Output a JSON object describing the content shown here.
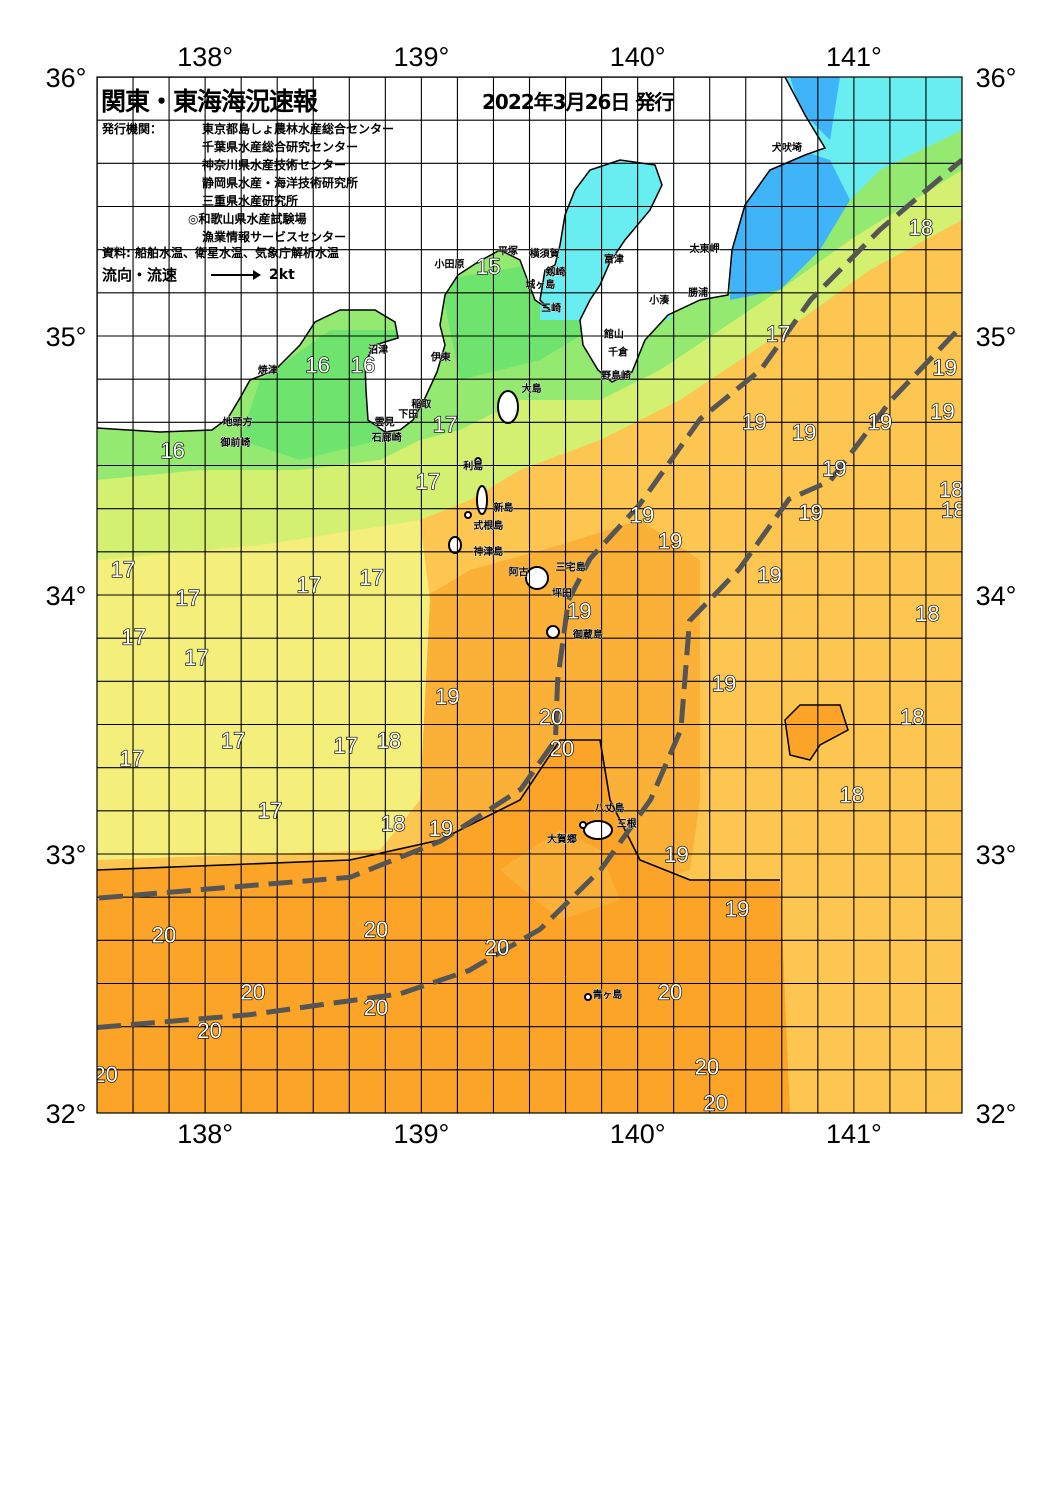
{
  "header": {
    "title": "関東・東海海況速報",
    "date": "2022年3月26日 発行",
    "issuer_label": "発行機関：",
    "issuers": [
      "東京都島しょ農林水産総合センター",
      "千葉県水産総合研究センター",
      "神奈川県水産技術センター",
      "静岡県水産・海洋技術研究所",
      "三重県水産研究所",
      "◎和歌山県水産試験場",
      "漁業情報サービスセンター"
    ],
    "source": "資料: 船舶水温、衛星水温、気象庁解析水温",
    "legend_label": "流向・流速",
    "legend_speed": "2kt"
  },
  "map": {
    "lon_range": [
      137.5,
      141.5
    ],
    "lat_range": [
      32,
      36
    ],
    "grid_step_deg": 0.1667,
    "lon_ticks": [
      "138°",
      "139°",
      "140°",
      "141°"
    ],
    "lon_tick_values": [
      138,
      139,
      140,
      141
    ],
    "lat_ticks": [
      "36°",
      "35°",
      "34°",
      "33°",
      "32°"
    ],
    "lat_tick_values": [
      36,
      35,
      34,
      33,
      32
    ],
    "colors": {
      "land": "#ffffff",
      "sst_15_16": "#6ee46e",
      "sst_16_17": "#94ea70",
      "sst_17": "#d4f070",
      "sst_17_18": "#f4ef7a",
      "sst_18_19": "#fdc650",
      "sst_19_20": "#fbb038",
      "sst_20": "#fba428",
      "cold_coastal": "#68eef0",
      "coldest_coastal": "#40b4f8",
      "kuroshio_path": "#555555"
    },
    "sst_labels": [
      {
        "t": "15",
        "lon": 139.31,
        "lat": 35.27
      },
      {
        "t": "16",
        "lon": 138.52,
        "lat": 34.89
      },
      {
        "t": "16",
        "lon": 138.73,
        "lat": 34.89
      },
      {
        "t": "17",
        "lon": 139.11,
        "lat": 34.66
      },
      {
        "t": "16",
        "lon": 137.85,
        "lat": 34.56
      },
      {
        "t": "17",
        "lon": 139.03,
        "lat": 34.44
      },
      {
        "t": "17",
        "lon": 137.62,
        "lat": 34.1
      },
      {
        "t": "17",
        "lon": 137.92,
        "lat": 33.99
      },
      {
        "t": "17",
        "lon": 138.48,
        "lat": 34.04
      },
      {
        "t": "17",
        "lon": 138.77,
        "lat": 34.07
      },
      {
        "t": "17",
        "lon": 137.67,
        "lat": 33.84
      },
      {
        "t": "17",
        "lon": 137.96,
        "lat": 33.76
      },
      {
        "t": "19",
        "lon": 139.12,
        "lat": 33.61
      },
      {
        "t": "17",
        "lon": 138.13,
        "lat": 33.44
      },
      {
        "t": "17",
        "lon": 138.65,
        "lat": 33.42
      },
      {
        "t": "18",
        "lon": 138.85,
        "lat": 33.44
      },
      {
        "t": "17",
        "lon": 137.66,
        "lat": 33.37
      },
      {
        "t": "17",
        "lon": 138.3,
        "lat": 33.17
      },
      {
        "t": "18",
        "lon": 138.87,
        "lat": 33.12
      },
      {
        "t": "19",
        "lon": 139.09,
        "lat": 33.1
      },
      {
        "t": "20",
        "lon": 137.81,
        "lat": 32.69
      },
      {
        "t": "20",
        "lon": 138.79,
        "lat": 32.71
      },
      {
        "t": "20",
        "lon": 138.22,
        "lat": 32.47
      },
      {
        "t": "20",
        "lon": 138.79,
        "lat": 32.41
      },
      {
        "t": "20",
        "lon": 138.02,
        "lat": 32.32
      },
      {
        "t": "20",
        "lon": 137.54,
        "lat": 32.15
      },
      {
        "t": "20",
        "lon": 139.35,
        "lat": 32.64
      },
      {
        "t": "20",
        "lon": 139.6,
        "lat": 33.53
      },
      {
        "t": "20",
        "lon": 139.65,
        "lat": 33.41
      },
      {
        "t": "19",
        "lon": 139.73,
        "lat": 33.94
      },
      {
        "t": "19",
        "lon": 140.02,
        "lat": 34.31
      },
      {
        "t": "19",
        "lon": 140.15,
        "lat": 34.21
      },
      {
        "t": "19",
        "lon": 140.54,
        "lat": 34.67
      },
      {
        "t": "19",
        "lon": 140.77,
        "lat": 34.63
      },
      {
        "t": "19",
        "lon": 141.12,
        "lat": 34.67
      },
      {
        "t": "19",
        "lon": 140.91,
        "lat": 34.49
      },
      {
        "t": "19",
        "lon": 140.8,
        "lat": 34.32
      },
      {
        "t": "19",
        "lon": 140.61,
        "lat": 34.08
      },
      {
        "t": "19",
        "lon": 140.4,
        "lat": 33.66
      },
      {
        "t": "19",
        "lon": 140.18,
        "lat": 33.0
      },
      {
        "t": "19",
        "lon": 140.46,
        "lat": 32.79
      },
      {
        "t": "17",
        "lon": 140.65,
        "lat": 35.01
      },
      {
        "t": "18",
        "lon": 141.31,
        "lat": 35.42
      },
      {
        "t": "19",
        "lon": 141.42,
        "lat": 34.88
      },
      {
        "t": "19",
        "lon": 141.41,
        "lat": 34.71
      },
      {
        "t": "18",
        "lon": 141.45,
        "lat": 34.41
      },
      {
        "t": "18",
        "lon": 141.46,
        "lat": 34.33
      },
      {
        "t": "18",
        "lon": 141.34,
        "lat": 33.93
      },
      {
        "t": "18",
        "lon": 141.27,
        "lat": 33.53
      },
      {
        "t": "18",
        "lon": 140.99,
        "lat": 33.23
      },
      {
        "t": "20",
        "lon": 140.15,
        "lat": 32.47
      },
      {
        "t": "20",
        "lon": 140.32,
        "lat": 32.18
      },
      {
        "t": "20",
        "lon": 140.36,
        "lat": 32.04
      }
    ],
    "places": [
      {
        "n": "小田原",
        "lon": 139.13,
        "lat": 35.28
      },
      {
        "n": "平塚",
        "lon": 139.4,
        "lat": 35.33
      },
      {
        "n": "横須賀",
        "lon": 139.57,
        "lat": 35.32
      },
      {
        "n": "富津",
        "lon": 139.89,
        "lat": 35.3
      },
      {
        "n": "剱崎",
        "lon": 139.62,
        "lat": 35.25
      },
      {
        "n": "城ヶ島",
        "lon": 139.55,
        "lat": 35.2
      },
      {
        "n": "三崎",
        "lon": 139.6,
        "lat": 35.11
      },
      {
        "n": "館山",
        "lon": 139.89,
        "lat": 35.01
      },
      {
        "n": "千倉",
        "lon": 139.91,
        "lat": 34.94
      },
      {
        "n": "野島崎",
        "lon": 139.9,
        "lat": 34.85
      },
      {
        "n": "小湊",
        "lon": 140.1,
        "lat": 35.14
      },
      {
        "n": "勝浦",
        "lon": 140.28,
        "lat": 35.17
      },
      {
        "n": "太東岬",
        "lon": 140.31,
        "lat": 35.34
      },
      {
        "n": "犬吠埼",
        "lon": 140.69,
        "lat": 35.73
      },
      {
        "n": "沼津",
        "lon": 138.8,
        "lat": 34.95
      },
      {
        "n": "焼津",
        "lon": 138.29,
        "lat": 34.87
      },
      {
        "n": "伊東",
        "lon": 139.09,
        "lat": 34.92
      },
      {
        "n": "稲取",
        "lon": 139.0,
        "lat": 34.74
      },
      {
        "n": "下田",
        "lon": 138.94,
        "lat": 34.7
      },
      {
        "n": "雲見",
        "lon": 138.83,
        "lat": 34.67
      },
      {
        "n": "石廊崎",
        "lon": 138.84,
        "lat": 34.61
      },
      {
        "n": "地頭方",
        "lon": 138.15,
        "lat": 34.67
      },
      {
        "n": "御前崎",
        "lon": 138.14,
        "lat": 34.59
      },
      {
        "n": "大島",
        "lon": 139.51,
        "lat": 34.8
      },
      {
        "n": "利島",
        "lon": 139.24,
        "lat": 34.5
      },
      {
        "n": "新島",
        "lon": 139.38,
        "lat": 34.34
      },
      {
        "n": "式根島",
        "lon": 139.31,
        "lat": 34.27
      },
      {
        "n": "神津島",
        "lon": 139.31,
        "lat": 34.17
      },
      {
        "n": "三宅島",
        "lon": 139.69,
        "lat": 34.11
      },
      {
        "n": "阿古",
        "lon": 139.45,
        "lat": 34.09
      },
      {
        "n": "坪田",
        "lon": 139.65,
        "lat": 34.01
      },
      {
        "n": "御蔵島",
        "lon": 139.77,
        "lat": 33.85
      },
      {
        "n": "八丈島",
        "lon": 139.87,
        "lat": 33.18
      },
      {
        "n": "三根",
        "lon": 139.95,
        "lat": 33.12
      },
      {
        "n": "大賀郷",
        "lon": 139.65,
        "lat": 33.06
      },
      {
        "n": "青ヶ島",
        "lon": 139.86,
        "lat": 32.46
      }
    ],
    "kuroshio_paths": [
      [
        [
          137.51,
          32.83
        ],
        [
          138.67,
          32.91
        ],
        [
          139.09,
          33.05
        ],
        [
          139.46,
          33.25
        ],
        [
          139.62,
          33.44
        ],
        [
          139.63,
          33.67
        ],
        [
          139.68,
          33.98
        ],
        [
          139.78,
          34.14
        ],
        [
          140.01,
          34.35
        ],
        [
          140.29,
          34.68
        ],
        [
          140.57,
          34.87
        ],
        [
          140.8,
          35.14
        ],
        [
          141.12,
          35.41
        ],
        [
          141.5,
          35.68
        ]
      ],
      [
        [
          137.5,
          32.33
        ],
        [
          138.21,
          32.38
        ],
        [
          138.9,
          32.46
        ],
        [
          139.22,
          32.55
        ],
        [
          139.55,
          32.71
        ],
        [
          139.83,
          32.94
        ],
        [
          140.06,
          33.21
        ],
        [
          140.2,
          33.48
        ],
        [
          140.24,
          33.9
        ],
        [
          140.47,
          34.1
        ],
        [
          140.7,
          34.37
        ],
        [
          140.89,
          34.44
        ],
        [
          141.17,
          34.75
        ],
        [
          141.5,
          35.04
        ]
      ]
    ]
  }
}
